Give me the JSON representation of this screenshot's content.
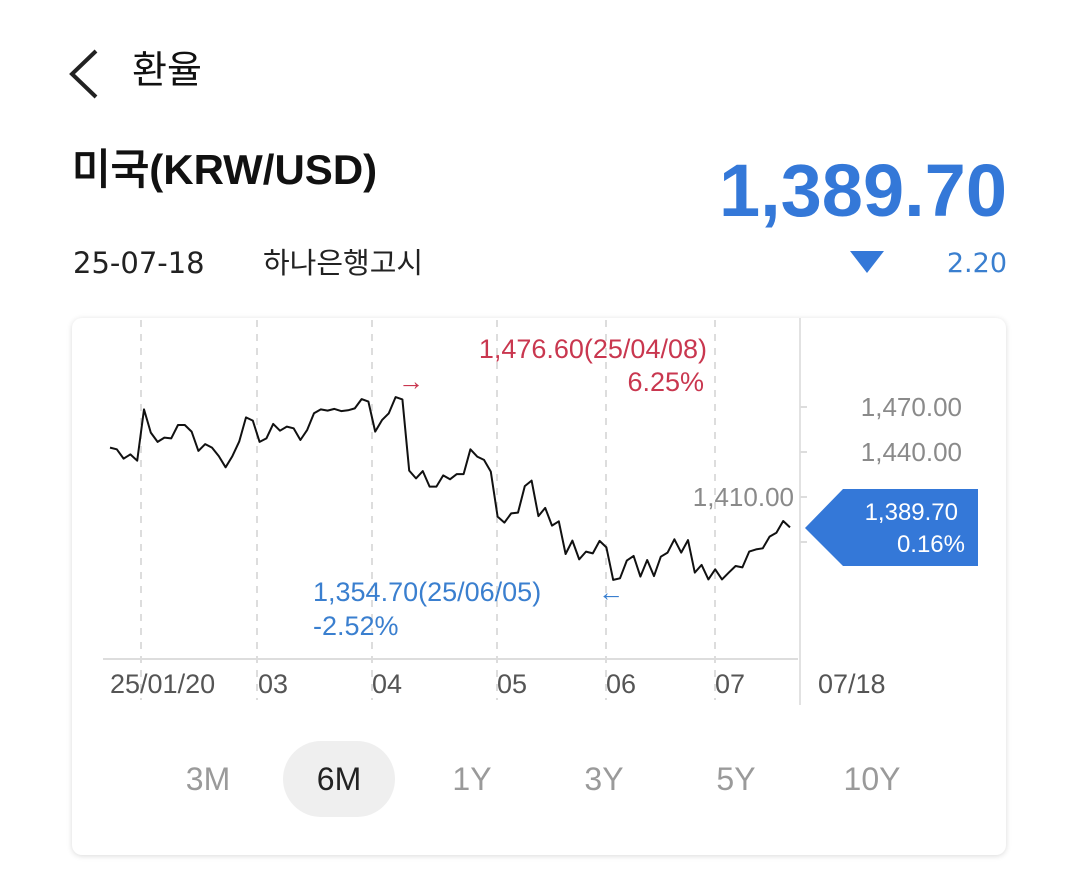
{
  "header": {
    "back_icon": "chevron-left-icon",
    "title": "환율"
  },
  "currency": {
    "name": "미국(KRW/USD)",
    "price": "1,389.70",
    "date": "25-07-18",
    "notice": "하나은행고시",
    "change_direction": "down",
    "change": "2.20"
  },
  "colors": {
    "accent_blue": "#3478d8",
    "high_red": "#c9374f",
    "low_blue": "#3a7fcf"
  },
  "chart_data": {
    "type": "line",
    "title": "",
    "xlabel": "",
    "ylabel": "",
    "ylim": [
      1330,
      1495
    ],
    "y_ticks": [
      {
        "value": 1470,
        "label": "1,470.00"
      },
      {
        "value": 1440,
        "label": "1,440.00"
      },
      {
        "value": 1410,
        "label": "1,410.00"
      },
      {
        "value": 1380,
        "label": ""
      }
    ],
    "x_ticks": [
      "25/01/20",
      "03",
      "04",
      "05",
      "06",
      "07"
    ],
    "x_end_label": "07/18",
    "grid": "vertical dashed",
    "series": [
      {
        "name": "KRW/USD",
        "values": [
          1442.9,
          1441.8,
          1435.6,
          1438.4,
          1434.2,
          1468.4,
          1452.9,
          1446.7,
          1449.6,
          1449.1,
          1458.0,
          1458.0,
          1453.6,
          1440.7,
          1445.3,
          1442.9,
          1437.3,
          1429.8,
          1437.3,
          1446.9,
          1463.1,
          1460.9,
          1446.7,
          1449.1,
          1458.7,
          1454.2,
          1456.9,
          1455.8,
          1448.0,
          1454.7,
          1465.8,
          1468.4,
          1467.6,
          1468.7,
          1467.3,
          1467.8,
          1469.1,
          1475.3,
          1473.6,
          1453.6,
          1461.3,
          1465.8,
          1476.6,
          1475.1,
          1427.6,
          1422.4,
          1427.3,
          1416.9,
          1416.9,
          1424.4,
          1421.8,
          1425.3,
          1425.3,
          1441.8,
          1436.9,
          1434.7,
          1426.9,
          1396.9,
          1392.9,
          1399.1,
          1399.6,
          1417.3,
          1420.9,
          1397.3,
          1402.7,
          1390.9,
          1393.8,
          1372.0,
          1380.9,
          1368.4,
          1373.6,
          1372.4,
          1380.7,
          1376.4,
          1354.7,
          1355.8,
          1367.6,
          1370.7,
          1356.9,
          1368.0,
          1357.3,
          1370.2,
          1372.9,
          1381.8,
          1372.9,
          1381.3,
          1359.6,
          1364.7,
          1355.1,
          1361.8,
          1355.1,
          1359.6,
          1364.0,
          1363.1,
          1373.6,
          1375.1,
          1375.8,
          1383.6,
          1386.2,
          1394.0,
          1389.7
        ]
      }
    ],
    "annotations": {
      "high": {
        "label": "1,476.60(25/04/08)",
        "pct": "6.25%",
        "arrow": "→"
      },
      "low": {
        "label": "1,354.70(25/06/05)",
        "pct": "-2.52%",
        "arrow": "←"
      },
      "current": {
        "label": "1,389.70",
        "pct": "0.16%"
      }
    }
  },
  "periods": [
    {
      "label": "3M"
    },
    {
      "label": "6M",
      "selected": true
    },
    {
      "label": "1Y"
    },
    {
      "label": "3Y"
    },
    {
      "label": "5Y"
    },
    {
      "label": "10Y"
    }
  ]
}
